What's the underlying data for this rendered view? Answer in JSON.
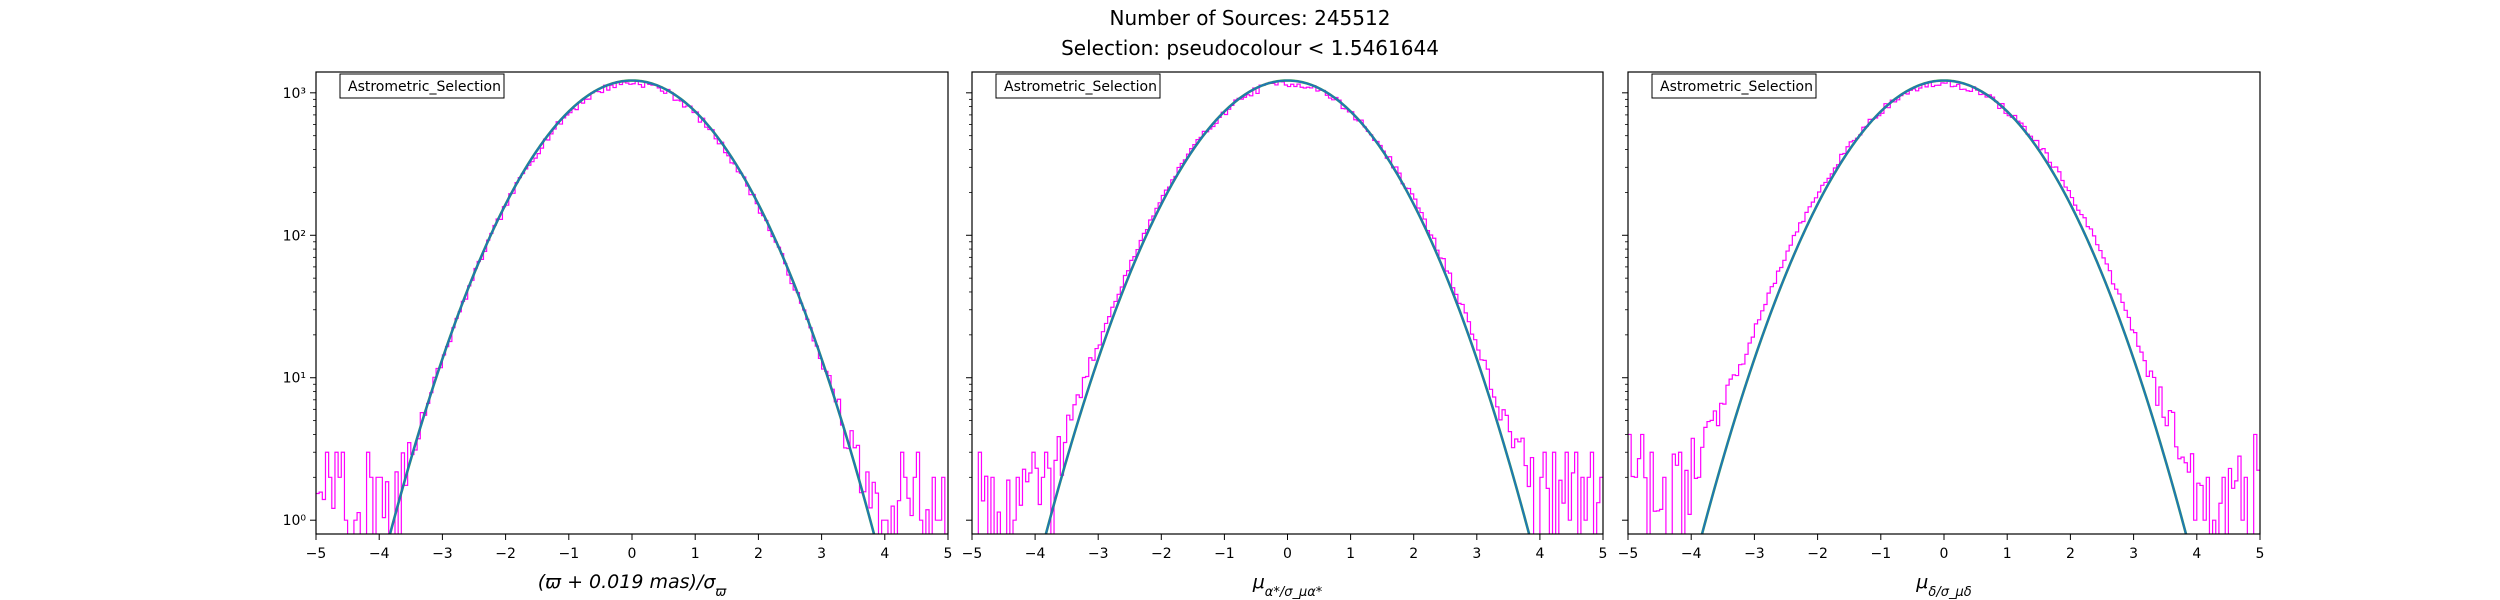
{
  "figure": {
    "title_line1": "Number of Sources: 245512",
    "title_line2": "Selection: pseudocolour < 1.5461644"
  },
  "colors": {
    "histogram": "#ff00ff",
    "gaussian_fit": "#1f77b4",
    "gaussian_fit_overlay": "#2ca02c",
    "axes": "#000000"
  },
  "chart_data": [
    {
      "type": "line",
      "legend_label": "Astrometric_Selection",
      "legend_position": "top-left",
      "xlabel": "(ϖ + 0.019 mas)/σ_ϖ",
      "ylabel": "",
      "xlim": [
        -5,
        5
      ],
      "ylim": [
        0.8,
        1400
      ],
      "yscale": "log",
      "grid": false,
      "xticks": [
        -5,
        -4,
        -3,
        -2,
        -1,
        0,
        1,
        2,
        3,
        4,
        5
      ],
      "yticks": [
        1,
        10,
        100,
        1000
      ],
      "yticklabels": [
        "10⁰",
        "10¹",
        "10²",
        "10³"
      ],
      "series": [
        {
          "kind": "gaussian_curve",
          "peak": 1220,
          "sigma": 1.0,
          "mean": 0.0
        },
        {
          "kind": "histogram",
          "peak": 1180,
          "sigma": 1.0,
          "bins": 200,
          "tail_floor": 1,
          "tail_noise": 2.5,
          "noise_seed": 7
        }
      ]
    },
    {
      "type": "line",
      "legend_label": "Astrometric_Selection",
      "legend_position": "top-left",
      "xlabel": "μ_α*/σ_μα*",
      "ylabel": "",
      "xlim": [
        -5,
        5
      ],
      "ylim": [
        0.8,
        1400
      ],
      "yscale": "log",
      "grid": false,
      "xticks": [
        -5,
        -4,
        -3,
        -2,
        -1,
        0,
        1,
        2,
        3,
        4,
        5
      ],
      "yticks": [
        1,
        10,
        100,
        1000
      ],
      "yticklabels": [
        "10⁰",
        "10¹",
        "10²",
        "10³"
      ],
      "series": [
        {
          "kind": "gaussian_curve",
          "peak": 1220,
          "sigma": 1.0,
          "mean": 0.0
        },
        {
          "kind": "histogram",
          "peak": 1170,
          "sigma": 1.03,
          "bins": 200,
          "tail_floor": 1,
          "tail_noise": 3.0,
          "noise_seed": 19
        }
      ]
    },
    {
      "type": "line",
      "legend_label": "Astrometric_Selection",
      "legend_position": "top-left",
      "xlabel": "μ_δ/σ_μδ",
      "ylabel": "",
      "xlim": [
        -5,
        5
      ],
      "ylim": [
        0.8,
        1400
      ],
      "yscale": "log",
      "grid": false,
      "xticks": [
        -5,
        -4,
        -3,
        -2,
        -1,
        0,
        1,
        2,
        3,
        4,
        5
      ],
      "yticks": [
        1,
        10,
        100,
        1000
      ],
      "yticklabels": [
        "10⁰",
        "10¹",
        "10²",
        "10³"
      ],
      "series": [
        {
          "kind": "gaussian_curve",
          "peak": 1220,
          "sigma": 1.0,
          "mean": 0.0
        },
        {
          "kind": "histogram",
          "peak": 1160,
          "sigma": 1.06,
          "bins": 200,
          "tail_floor": 1,
          "tail_noise": 4.0,
          "noise_seed": 31
        }
      ]
    }
  ]
}
